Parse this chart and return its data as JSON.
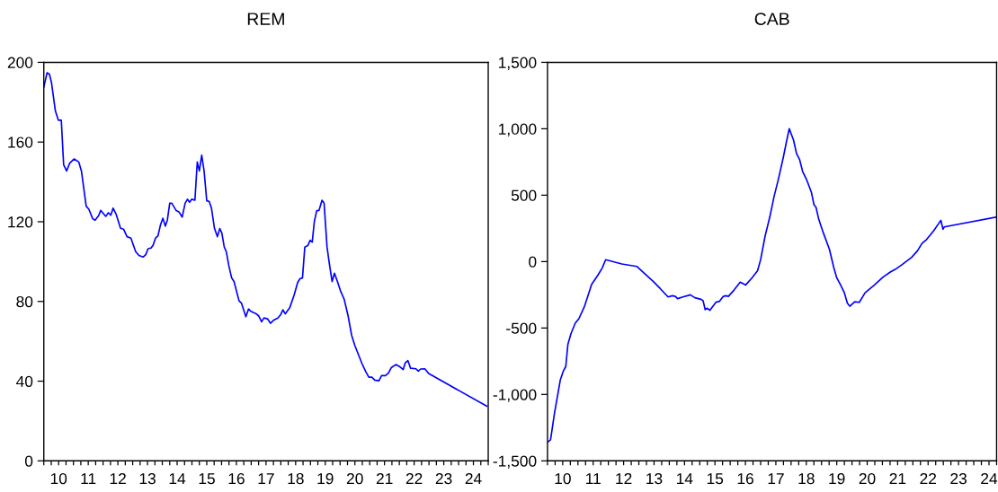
{
  "chart_data": [
    {
      "type": "line",
      "title": "REM",
      "grid": false,
      "xlim": [
        10,
        25
      ],
      "ylim": [
        0,
        200
      ],
      "yticks": [
        0,
        40,
        80,
        120,
        160,
        200
      ],
      "xticks": [
        {
          "value": 10,
          "label": null
        },
        {
          "value": 10.25,
          "label": null
        },
        {
          "value": 10.5,
          "label": "10"
        },
        {
          "value": 10.75,
          "label": null
        },
        {
          "value": 11,
          "label": null
        },
        {
          "value": 11.25,
          "label": null
        },
        {
          "value": 11.5,
          "label": "11"
        },
        {
          "value": 11.75,
          "label": null
        },
        {
          "value": 12,
          "label": null
        },
        {
          "value": 12.25,
          "label": null
        },
        {
          "value": 12.5,
          "label": "12"
        },
        {
          "value": 12.75,
          "label": null
        },
        {
          "value": 13,
          "label": null
        },
        {
          "value": 13.25,
          "label": null
        },
        {
          "value": 13.5,
          "label": "13"
        },
        {
          "value": 13.75,
          "label": null
        },
        {
          "value": 14,
          "label": null
        },
        {
          "value": 14.25,
          "label": null
        },
        {
          "value": 14.5,
          "label": "14"
        },
        {
          "value": 14.75,
          "label": null
        },
        {
          "value": 15,
          "label": null
        },
        {
          "value": 15.25,
          "label": null
        },
        {
          "value": 15.5,
          "label": "15"
        },
        {
          "value": 15.75,
          "label": null
        },
        {
          "value": 16,
          "label": null
        },
        {
          "value": 16.25,
          "label": null
        },
        {
          "value": 16.5,
          "label": "16"
        },
        {
          "value": 16.75,
          "label": null
        },
        {
          "value": 17,
          "label": null
        },
        {
          "value": 17.25,
          "label": null
        },
        {
          "value": 17.5,
          "label": "17"
        },
        {
          "value": 17.75,
          "label": null
        },
        {
          "value": 18,
          "label": null
        },
        {
          "value": 18.25,
          "label": null
        },
        {
          "value": 18.5,
          "label": "18"
        },
        {
          "value": 18.75,
          "label": null
        },
        {
          "value": 19,
          "label": null
        },
        {
          "value": 19.25,
          "label": null
        },
        {
          "value": 19.5,
          "label": "19"
        },
        {
          "value": 19.75,
          "label": null
        },
        {
          "value": 20,
          "label": null
        },
        {
          "value": 20.25,
          "label": null
        },
        {
          "value": 20.5,
          "label": "20"
        },
        {
          "value": 20.75,
          "label": null
        },
        {
          "value": 21,
          "label": null
        },
        {
          "value": 21.25,
          "label": null
        },
        {
          "value": 21.5,
          "label": "21"
        },
        {
          "value": 21.75,
          "label": null
        },
        {
          "value": 22,
          "label": null
        },
        {
          "value": 22.25,
          "label": null
        },
        {
          "value": 22.5,
          "label": "22"
        },
        {
          "value": 22.75,
          "label": null
        },
        {
          "value": 23,
          "label": null
        },
        {
          "value": 23.25,
          "label": null
        },
        {
          "value": 23.5,
          "label": "23"
        },
        {
          "value": 23.75,
          "label": null
        },
        {
          "value": 24,
          "label": null
        },
        {
          "value": 24.25,
          "label": null
        },
        {
          "value": 24.5,
          "label": "24"
        },
        {
          "value": 24.75,
          "label": null
        },
        {
          "value": 25,
          "label": null
        }
      ],
      "series": [
        {
          "color": "#0000ff",
          "x": [
            10.0,
            10.11,
            10.19,
            10.26,
            10.39,
            10.49,
            10.59,
            10.67,
            10.77,
            10.87,
            11.02,
            11.18,
            11.27,
            11.43,
            11.52,
            11.65,
            11.73,
            11.85,
            11.92,
            12.09,
            12.18,
            12.26,
            12.34,
            12.44,
            12.59,
            12.69,
            12.81,
            12.94,
            13.1,
            13.21,
            13.35,
            13.44,
            13.52,
            13.62,
            13.69,
            13.77,
            13.85,
            13.94,
            14.02,
            14.1,
            14.17,
            14.25,
            14.32,
            14.47,
            14.57,
            14.67,
            14.77,
            14.85,
            14.92,
            14.99,
            15.1,
            15.18,
            15.25,
            15.33,
            15.41,
            15.5,
            15.58,
            15.66,
            15.76,
            15.86,
            15.94,
            16.01,
            16.09,
            16.16,
            16.24,
            16.34,
            16.42,
            16.59,
            16.67,
            16.82,
            16.91,
            16.99,
            17.17,
            17.25,
            17.35,
            17.43,
            17.55,
            17.65,
            17.75,
            17.9,
            18.0,
            18.07,
            18.15,
            18.3,
            18.45,
            18.57,
            18.65,
            18.73,
            18.81,
            18.91,
            18.99,
            19.06,
            19.13,
            19.21,
            19.29,
            19.39,
            19.46,
            19.56,
            19.63,
            19.73,
            19.81,
            19.91,
            20.01,
            20.14,
            20.27,
            20.39,
            20.5,
            20.62,
            20.74,
            20.87,
            20.97,
            21.07,
            21.17,
            21.31,
            21.4,
            21.53,
            21.63,
            21.73,
            21.88,
            22.01,
            22.13,
            22.2,
            22.29,
            22.38,
            22.56,
            22.64,
            22.72,
            22.86,
            22.99,
            24.95
          ],
          "values": [
            187.6,
            194.8,
            194,
            189.8,
            175.6,
            171,
            171,
            148.5,
            145.5,
            149.3,
            151.5,
            150,
            145.5,
            127.8,
            126.3,
            121.5,
            120.8,
            123,
            125.7,
            122.7,
            124.5,
            123.3,
            126.8,
            123.8,
            116.7,
            116.3,
            112.5,
            111.8,
            105,
            103.1,
            102.3,
            103.5,
            106.5,
            106.8,
            108.3,
            111.8,
            112.8,
            118.5,
            121.8,
            117.8,
            120.8,
            129.3,
            129.3,
            125.6,
            124.8,
            122.3,
            129.3,
            131.3,
            129.8,
            131.3,
            130.8,
            150,
            145.5,
            153.4,
            145.5,
            130.5,
            130.2,
            126.8,
            116.7,
            112.5,
            116.6,
            114.3,
            107.3,
            105,
            98.3,
            91.8,
            90,
            80.3,
            79.2,
            72.3,
            76.2,
            75,
            73.8,
            72.8,
            69.8,
            71.7,
            71.3,
            69,
            70.5,
            71.7,
            73.5,
            75.8,
            73.8,
            76.8,
            83.3,
            89.6,
            91.5,
            91.8,
            107.3,
            108,
            110.7,
            109.8,
            120,
            125.6,
            125.7,
            130.8,
            129.3,
            107.3,
            99.8,
            90,
            94.2,
            90,
            85.5,
            81,
            72.8,
            63,
            57.8,
            53.3,
            48.8,
            44.7,
            42,
            42,
            40.5,
            40.2,
            42.8,
            42.8,
            44,
            46.8,
            48.3,
            47.3,
            45.8,
            49.2,
            50.3,
            46.5,
            46.2,
            45,
            46.1,
            46.2,
            43.8,
            27.5
          ]
        }
      ]
    },
    {
      "type": "line",
      "title": "CAB",
      "grid": false,
      "xlim": [
        10,
        24.75
      ],
      "ylim": [
        -1500,
        1500
      ],
      "yticks": [
        {
          "value": -1500,
          "label": "-1,500"
        },
        {
          "value": -1000,
          "label": "-1,000"
        },
        {
          "value": -500,
          "label": "-500"
        },
        0,
        500,
        {
          "value": 1000,
          "label": "1,000"
        },
        {
          "value": 1500,
          "label": "1,500"
        }
      ],
      "xticks": [
        {
          "value": 10,
          "label": null
        },
        {
          "value": 10.25,
          "label": null
        },
        {
          "value": 10.5,
          "label": "10"
        },
        {
          "value": 10.75,
          "label": null
        },
        {
          "value": 11,
          "label": null
        },
        {
          "value": 11.25,
          "label": null
        },
        {
          "value": 11.5,
          "label": "11"
        },
        {
          "value": 11.75,
          "label": null
        },
        {
          "value": 12,
          "label": null
        },
        {
          "value": 12.25,
          "label": null
        },
        {
          "value": 12.5,
          "label": "12"
        },
        {
          "value": 12.75,
          "label": null
        },
        {
          "value": 13,
          "label": null
        },
        {
          "value": 13.25,
          "label": null
        },
        {
          "value": 13.5,
          "label": "13"
        },
        {
          "value": 13.75,
          "label": null
        },
        {
          "value": 14,
          "label": null
        },
        {
          "value": 14.25,
          "label": null
        },
        {
          "value": 14.5,
          "label": "14"
        },
        {
          "value": 14.75,
          "label": null
        },
        {
          "value": 15,
          "label": null
        },
        {
          "value": 15.25,
          "label": null
        },
        {
          "value": 15.5,
          "label": "15"
        },
        {
          "value": 15.75,
          "label": null
        },
        {
          "value": 16,
          "label": null
        },
        {
          "value": 16.25,
          "label": null
        },
        {
          "value": 16.5,
          "label": "16"
        },
        {
          "value": 16.75,
          "label": null
        },
        {
          "value": 17,
          "label": null
        },
        {
          "value": 17.25,
          "label": null
        },
        {
          "value": 17.5,
          "label": "17"
        },
        {
          "value": 17.75,
          "label": null
        },
        {
          "value": 18,
          "label": null
        },
        {
          "value": 18.25,
          "label": null
        },
        {
          "value": 18.5,
          "label": "18"
        },
        {
          "value": 18.75,
          "label": null
        },
        {
          "value": 19,
          "label": null
        },
        {
          "value": 19.25,
          "label": null
        },
        {
          "value": 19.5,
          "label": "19"
        },
        {
          "value": 19.75,
          "label": null
        },
        {
          "value": 20,
          "label": null
        },
        {
          "value": 20.25,
          "label": null
        },
        {
          "value": 20.5,
          "label": "20"
        },
        {
          "value": 20.75,
          "label": null
        },
        {
          "value": 21,
          "label": null
        },
        {
          "value": 21.25,
          "label": null
        },
        {
          "value": 21.5,
          "label": "21"
        },
        {
          "value": 21.75,
          "label": null
        },
        {
          "value": 22,
          "label": null
        },
        {
          "value": 22.25,
          "label": null
        },
        {
          "value": 22.5,
          "label": "22"
        },
        {
          "value": 22.75,
          "label": null
        },
        {
          "value": 23,
          "label": null
        },
        {
          "value": 23.25,
          "label": null
        },
        {
          "value": 23.5,
          "label": "23"
        },
        {
          "value": 23.75,
          "label": null
        },
        {
          "value": 24,
          "label": null
        },
        {
          "value": 24.25,
          "label": null
        },
        {
          "value": 24.5,
          "label": "24"
        },
        {
          "value": 24.75,
          "label": null
        }
      ],
      "series": [
        {
          "color": "#0000ff",
          "x": [
            10.0,
            10.1,
            10.23,
            10.42,
            10.52,
            10.6,
            10.67,
            10.77,
            10.91,
            11.03,
            11.21,
            11.45,
            11.65,
            11.8,
            11.91,
            12.44,
            12.93,
            13.17,
            13.47,
            13.71,
            13.96,
            14.1,
            14.2,
            14.27,
            14.45,
            14.69,
            14.84,
            15.04,
            15.11,
            15.18,
            15.25,
            15.33,
            15.53,
            15.65,
            15.77,
            15.87,
            15.94,
            16.12,
            16.33,
            16.51,
            16.71,
            16.9,
            17.0,
            17.15,
            17.3,
            17.44,
            17.59,
            17.74,
            17.84,
            17.94,
            18.08,
            18.18,
            18.28,
            18.38,
            18.52,
            18.67,
            18.75,
            18.82,
            18.91,
            19.06,
            19.26,
            19.4,
            19.5,
            19.63,
            19.75,
            19.85,
            19.93,
            20.09,
            20.24,
            20.43,
            20.73,
            21.02,
            21.27,
            21.42,
            21.66,
            21.96,
            22.15,
            22.3,
            22.45,
            22.69,
            22.92,
            22.99,
            23.03,
            24.75
          ],
          "values": [
            -1360,
            -1342,
            -1140,
            -892,
            -824,
            -790,
            -622,
            -543,
            -464,
            -430,
            -340,
            -171,
            -104,
            -47,
            14,
            -18,
            -36,
            -86,
            -149,
            -205,
            -266,
            -257,
            -262,
            -279,
            -266,
            -250,
            -272,
            -284,
            -295,
            -362,
            -351,
            -367,
            -306,
            -299,
            -262,
            -257,
            -262,
            -216,
            -155,
            -176,
            -124,
            -68,
            15,
            195,
            335,
            488,
            627,
            780,
            893,
            1001,
            915,
            813,
            768,
            678,
            611,
            520,
            430,
            408,
            318,
            216,
            92,
            -43,
            -122,
            -178,
            -235,
            -313,
            -336,
            -302,
            -307,
            -235,
            -178,
            -117,
            -77,
            -59,
            -20,
            32,
            81,
            137,
            166,
            234,
            311,
            243,
            261,
            336
          ]
        }
      ]
    }
  ]
}
